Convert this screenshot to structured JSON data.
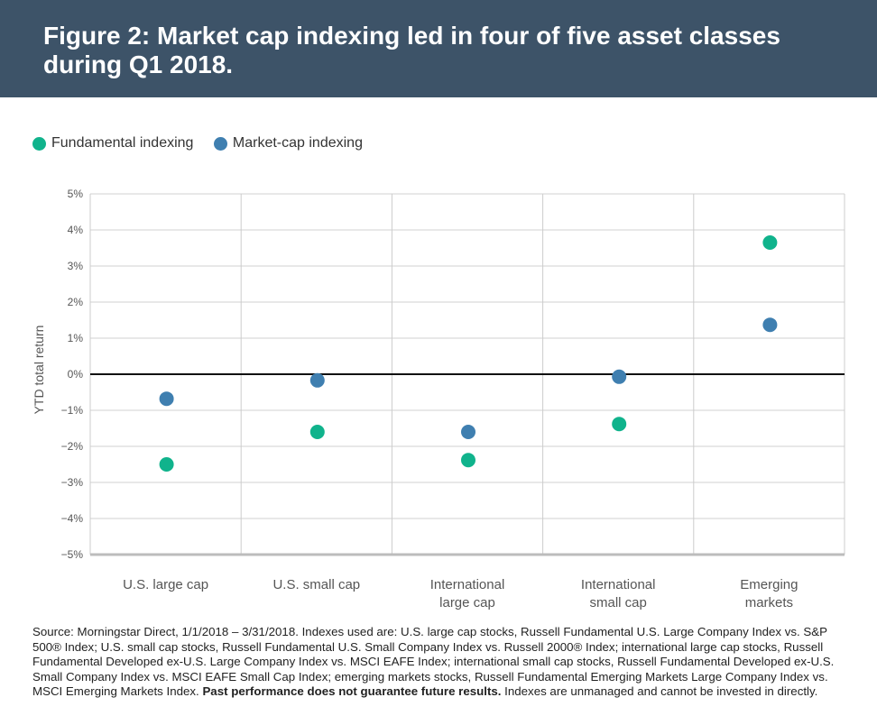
{
  "header": {
    "title": "Figure 2: Market cap indexing led in four of five asset classes during Q1 2018."
  },
  "colors": {
    "banner": "#3d5368",
    "fundamental": "#10b38c",
    "market_cap": "#3f7fb0"
  },
  "chart_data": {
    "type": "scatter",
    "ylabel": "YTD total return",
    "ylim": [
      -5,
      5
    ],
    "yticks": [
      "5%",
      "4%",
      "3%",
      "2%",
      "1%",
      "0%",
      "−1%",
      "−2%",
      "−3%",
      "−4%",
      "−5%"
    ],
    "categories": [
      [
        "U.S. large cap"
      ],
      [
        "U.S. small cap"
      ],
      [
        "International",
        "large cap"
      ],
      [
        "International",
        "small cap"
      ],
      [
        "Emerging",
        "markets"
      ]
    ],
    "legend_position": "top-left",
    "series": [
      {
        "name": "Fundamental indexing",
        "color": "#10b38c",
        "values": [
          -2.5,
          -1.6,
          -2.38,
          -1.38,
          3.65
        ]
      },
      {
        "name": "Market-cap indexing",
        "color": "#3f7fb0",
        "values": [
          -0.68,
          -0.17,
          -1.6,
          -0.07,
          1.37
        ]
      }
    ]
  },
  "source": {
    "text_1": "Source: Morningstar Direct, 1/1/2018 – 3/31/2018. Indexes used are: U.S. large cap stocks, Russell Fundamental U.S. Large Company Index vs. S&P 500® Index; U.S. small cap stocks, Russell Fundamental U.S. Small Company Index vs. Russell 2000® Index; international large cap stocks, Russell Fundamental Developed ex-U.S. Large Company Index vs. MSCI EAFE Index; international small cap stocks, Russell Fundamental Developed ex-U.S. Small Company Index vs. MSCI EAFE Small Cap Index; emerging markets stocks, Russell Fundamental Emerging Markets Large Company Index vs. MSCI Emerging Markets Index. ",
    "bold": "Past performance does not guarantee future results.",
    "text_2": " Indexes are unmanaged and cannot be invested in directly."
  }
}
